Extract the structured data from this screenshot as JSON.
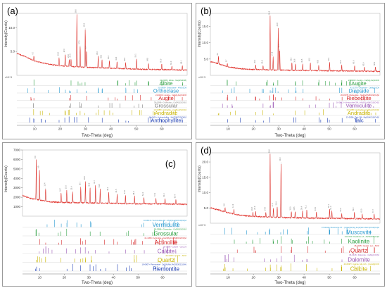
{
  "chart_data": [
    {
      "type": "line",
      "panel": "(a)",
      "xlabel": "Two-Theta (deg)",
      "ylabel": "Intensity(Counts)",
      "xlim": [
        3,
        70
      ],
      "ylim": [
        0,
        13
      ],
      "yunit_note": "x10^3",
      "yticks": [
        "10.0",
        "5.0"
      ],
      "xticks": [
        10,
        20,
        30,
        40,
        50,
        60
      ],
      "pattern": {
        "baseline": [
          [
            3,
            4.6
          ],
          [
            6,
            4.0
          ],
          [
            10,
            3.0
          ],
          [
            15,
            2.4
          ],
          [
            20,
            2.0
          ],
          [
            30,
            1.7
          ],
          [
            40,
            1.5
          ],
          [
            50,
            1.3
          ],
          [
            60,
            1.2
          ],
          [
            70,
            1.1
          ]
        ],
        "peaks": [
          [
            9.7,
            1.0
          ],
          [
            19.6,
            1.8
          ],
          [
            22.0,
            2.6
          ],
          [
            23.6,
            1.5
          ],
          [
            24.3,
            1.6
          ],
          [
            26.6,
            11.0
          ],
          [
            27.9,
            4.5
          ],
          [
            29.9,
            8.2
          ],
          [
            30.4,
            3.5
          ],
          [
            35.0,
            2.4
          ],
          [
            36.5,
            1.7
          ],
          [
            39.4,
            1.6
          ],
          [
            42.4,
            1.4
          ],
          [
            45.8,
            1.3
          ],
          [
            50.1,
            2.2
          ],
          [
            54.8,
            1.4
          ],
          [
            60.0,
            1.2
          ],
          [
            64.0,
            0.8
          ],
          [
            68.1,
            1.0
          ]
        ]
      },
      "phases": [
        {
          "ref": "09-0456> Albite - Na(AlSi3O8)",
          "name": "Albite",
          "color": "#2ea043"
        },
        {
          "ref": "31-0966> Orthoclase - KAlSi3O8",
          "name": "Orthoclase",
          "color": "#2b9bd1"
        },
        {
          "ref": "24-0201> Augite - Ca(Mg,Fe)Si2O6",
          "name": "Augite",
          "color": "#d62728"
        },
        {
          "ref": "39-0368> Grossular - Ca3Al2(SiO4)3",
          "name": "Grossular",
          "color": "#7f7f7f"
        },
        {
          "ref": "10-0288> Andradite - Ca3Fe2(SiO4)3",
          "name": "Andradite",
          "color": "#c8b400"
        },
        {
          "ref": "16-0401> Anthophyllite - Mg7Si8O22(OH)2",
          "name": "Anthophyllite",
          "color": "#1f3fb4"
        }
      ]
    },
    {
      "type": "line",
      "panel": "(b)",
      "xlabel": "Two-Theta (deg)",
      "ylabel": "Intensity(Counts)",
      "xlim": [
        3,
        70
      ],
      "ylim": [
        0,
        19
      ],
      "yunit_note": "x10^3",
      "yticks": [
        "15.0",
        "10.0",
        "5.0"
      ],
      "xticks": [
        10,
        20,
        30,
        40,
        50,
        60
      ],
      "pattern": {
        "baseline": [
          [
            3,
            4.2
          ],
          [
            6,
            3.6
          ],
          [
            10,
            2.6
          ],
          [
            15,
            2.0
          ],
          [
            20,
            1.8
          ],
          [
            30,
            1.6
          ],
          [
            40,
            1.5
          ],
          [
            50,
            1.4
          ],
          [
            60,
            1.3
          ],
          [
            70,
            1.2
          ]
        ],
        "peaks": [
          [
            6.2,
            2.2
          ],
          [
            9.7,
            1.0
          ],
          [
            20.9,
            1.5
          ],
          [
            23.8,
            1.4
          ],
          [
            26.6,
            16.5
          ],
          [
            27.8,
            4.0
          ],
          [
            29.8,
            13.0
          ],
          [
            30.4,
            6.5
          ],
          [
            35.2,
            2.4
          ],
          [
            36.6,
            2.0
          ],
          [
            39.5,
            2.0
          ],
          [
            42.5,
            2.4
          ],
          [
            45.8,
            1.8
          ],
          [
            50.1,
            2.6
          ],
          [
            54.9,
            1.8
          ],
          [
            60.0,
            1.8
          ],
          [
            63.9,
            1.2
          ],
          [
            68.2,
            1.4
          ]
        ]
      },
      "phases": [
        {
          "ref": "24-0201> Augite - Ca(Mg,Fe)Si2O6",
          "name": "Augite",
          "color": "#2ea043"
        },
        {
          "ref": "41-1370> Diopside - CaMgSi2O6",
          "name": "Diopside",
          "color": "#2b9bd1"
        },
        {
          "ref": "20-0378> Riebeckite - Na2Fe5Si8O22(OH)2",
          "name": "Riebeckite",
          "color": "#d62728"
        },
        {
          "ref": "16-0613> Vermiculite-2M - Mg3(Si,Al)4O10(OH)2",
          "name": "Vermiculite",
          "color": "#9b59b6"
        },
        {
          "ref": "10-0288> Andradite - Ca3Fe2(SiO4)3",
          "name": "Andradite",
          "color": "#c8b400"
        },
        {
          "ref": "13-0558> Talc-2M - Mg3Si4O10(OH)2",
          "name": "Talc",
          "color": "#1f3fb4"
        }
      ]
    },
    {
      "type": "line",
      "panel": "(c)",
      "xlabel": "Two-Theta (deg)",
      "ylabel": "Intensity(Counts)",
      "xlim": [
        3,
        70
      ],
      "ylim": [
        0,
        7000
      ],
      "yticks": [
        "7000",
        "6000",
        "5000",
        "4000",
        "3000",
        "2000",
        "1000"
      ],
      "xticks": [
        10,
        20,
        30,
        40,
        50,
        60
      ],
      "pattern": {
        "baseline": [
          [
            3,
            2200
          ],
          [
            6,
            1900
          ],
          [
            10,
            1700
          ],
          [
            15,
            1500
          ],
          [
            20,
            1450
          ],
          [
            30,
            1400
          ],
          [
            40,
            1350
          ],
          [
            50,
            1300
          ],
          [
            60,
            1300
          ],
          [
            70,
            1250
          ]
        ],
        "peaks": [
          [
            8.6,
            4200
          ],
          [
            9.9,
            3200
          ],
          [
            12.4,
            1400
          ],
          [
            18.7,
            1000
          ],
          [
            21.0,
            1300
          ],
          [
            23.4,
            1200
          ],
          [
            26.7,
            1700
          ],
          [
            28.6,
            2300
          ],
          [
            30.5,
            1600
          ],
          [
            32.7,
            1900
          ],
          [
            34.6,
            1500
          ],
          [
            38.1,
            1200
          ],
          [
            41.5,
            1000
          ],
          [
            44.9,
            900
          ],
          [
            48.6,
            800
          ],
          [
            52.4,
            700
          ],
          [
            57.3,
            650
          ],
          [
            61.0,
            600
          ],
          [
            65.4,
            500
          ]
        ]
      },
      "phases": [
        {
          "ref": "16-0613> Vermiculite-2M - Mg3(Si,Al)4O10(OH)2",
          "name": "Vermiculite",
          "color": "#2b9bd1"
        },
        {
          "ref": "39-0368> Grossular - Ca3Al2(SiO4)3",
          "name": "Grossular",
          "color": "#2ea043"
        },
        {
          "ref": "41-1366> Actinolite - Ca2(Mg,Fe)5Si8O22(OH)2",
          "name": "Actinolite",
          "color": "#d62728"
        },
        {
          "ref": "05-0586> Calcite - CaCO3",
          "name": "Calcite",
          "color": "#9b59b6"
        },
        {
          "ref": "46-1045> Quartz - SiO2",
          "name": "Quartz",
          "color": "#c8b400"
        },
        {
          "ref": "19-0907> Piemontite - Ca2(Al,Mn,Fe)3Si3O12(OH)",
          "name": "Piemontite",
          "color": "#1f3fb4"
        }
      ]
    },
    {
      "type": "line",
      "panel": "(d)",
      "xlabel": "Two-Theta (deg)",
      "ylabel": "Intensity(Counts)",
      "xlim": [
        3,
        70
      ],
      "ylim": [
        0,
        23
      ],
      "yunit_note": "x10^3",
      "yticks": [
        "20.0",
        "15.0",
        "10.0",
        "5.0"
      ],
      "xticks": [
        10,
        20,
        30,
        40,
        50,
        60
      ],
      "pattern": {
        "baseline": [
          [
            3,
            5.0
          ],
          [
            6,
            4.4
          ],
          [
            10,
            3.4
          ],
          [
            15,
            2.6
          ],
          [
            20,
            2.2
          ],
          [
            30,
            1.9
          ],
          [
            40,
            1.7
          ],
          [
            50,
            1.6
          ],
          [
            60,
            1.5
          ],
          [
            70,
            1.4
          ]
        ],
        "peaks": [
          [
            8.8,
            1.4
          ],
          [
            12.3,
            1.6
          ],
          [
            19.8,
            1.4
          ],
          [
            20.9,
            1.8
          ],
          [
            24.9,
            1.6
          ],
          [
            26.6,
            20.5
          ],
          [
            27.9,
            3.0
          ],
          [
            29.4,
            3.5
          ],
          [
            30.9,
            18.0
          ],
          [
            35.0,
            2.0
          ],
          [
            36.5,
            2.0
          ],
          [
            39.4,
            2.2
          ],
          [
            41.1,
            2.6
          ],
          [
            44.9,
            2.0
          ],
          [
            50.1,
            3.0
          ],
          [
            51.0,
            2.4
          ],
          [
            54.9,
            1.8
          ],
          [
            59.9,
            2.0
          ],
          [
            63.0,
            1.6
          ],
          [
            67.7,
            1.6
          ]
        ]
      },
      "phases": [
        {
          "ref": "07-0042> Muscovite-3T - (K,Na)(Al,Mg,Fe)2(Si3.1Al0.9)O10(OH)2",
          "name": "Muscovite",
          "color": "#2b9bd1"
        },
        {
          "ref": "14-0164> Kaolinite-1A - Al2Si2O5(OH)4",
          "name": "Kaolinite",
          "color": "#2ea043"
        },
        {
          "ref": "46-1045> Quartz, syn - SiO2",
          "name": "Quartz",
          "color": "#d62728"
        },
        {
          "ref": "36-0426> Dolomite - CaMg(CO3)2",
          "name": "Dolomite",
          "color": "#9b59b6"
        },
        {
          "ref": "43-0697> Calcite, Mg-rich - (Ca,Mg)CO3",
          "name": "Calcite",
          "color": "#c8b400"
        }
      ]
    }
  ]
}
